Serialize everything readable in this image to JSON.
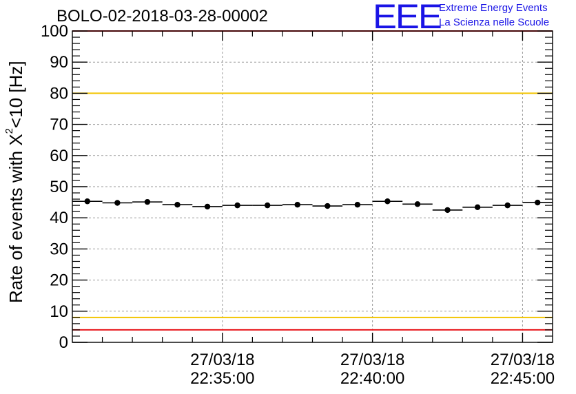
{
  "header": {
    "run_title": "BOLO-02-2018-03-28-00002"
  },
  "logo": {
    "letters": "EEE",
    "line1": "Extreme Energy Events",
    "line2": "La Scienza nelle Scuole",
    "color": "#1a14e6"
  },
  "chart_data": {
    "type": "scatter",
    "title": "BOLO-02-2018-03-28-00002",
    "ylabel_prefix": "Rate of events with X",
    "ylabel_sup": "2",
    "ylabel_suffix": "<10 [Hz]",
    "ylim": [
      0,
      100
    ],
    "y_ticks": [
      0,
      10,
      20,
      30,
      40,
      50,
      60,
      70,
      80,
      90,
      100
    ],
    "x_ticks": [
      {
        "t": 4.5,
        "date": "27/03/18",
        "time": "22:35:00"
      },
      {
        "t": 9.5,
        "date": "27/03/18",
        "time": "22:40:00"
      },
      {
        "t": 14.5,
        "date": "27/03/18",
        "time": "22:45:00"
      }
    ],
    "xlim": [
      -0.5,
      15.5
    ],
    "x_unit": "minutes from 22:30:30",
    "bin_width": 1,
    "points": [
      {
        "x": 0,
        "y": 45.3
      },
      {
        "x": 1,
        "y": 44.8
      },
      {
        "x": 2,
        "y": 45.1
      },
      {
        "x": 3,
        "y": 44.2
      },
      {
        "x": 4,
        "y": 43.6
      },
      {
        "x": 5,
        "y": 44.0
      },
      {
        "x": 6,
        "y": 44.0
      },
      {
        "x": 7,
        "y": 44.2
      },
      {
        "x": 8,
        "y": 43.8
      },
      {
        "x": 9,
        "y": 44.2
      },
      {
        "x": 10,
        "y": 45.3
      },
      {
        "x": 11,
        "y": 44.4
      },
      {
        "x": 12,
        "y": 42.5
      },
      {
        "x": 13,
        "y": 43.4
      },
      {
        "x": 14,
        "y": 44.0
      },
      {
        "x": 15,
        "y": 44.9
      }
    ],
    "reference_lines": [
      {
        "y": 100,
        "color": "#e8171b"
      },
      {
        "y": 80,
        "color": "#f2c400"
      },
      {
        "y": 8,
        "color": "#f2c400"
      },
      {
        "y": 4,
        "color": "#e8171b"
      }
    ],
    "grid": true
  }
}
